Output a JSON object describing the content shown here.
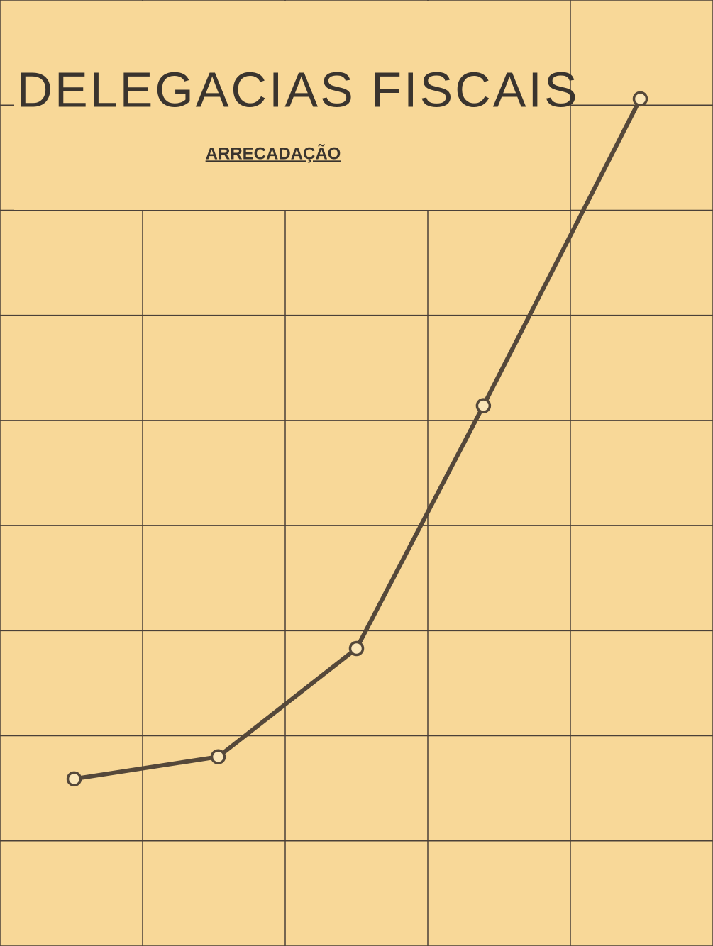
{
  "chart_data": {
    "type": "line",
    "title": "DELEGACIAS FISCAIS",
    "subtitle": "ARRECADAÇÃO",
    "x": [
      0.52,
      1.53,
      2.5,
      3.39,
      4.49
    ],
    "series": [
      {
        "color": "#55483a",
        "values": [
          1.59,
          1.8,
          2.83,
          5.14,
          8.06
        ]
      }
    ],
    "xlim": [
      0,
      5
    ],
    "ylim": [
      0,
      9
    ],
    "xticks": [
      0,
      1,
      2,
      3,
      4,
      5
    ],
    "yticks": [
      0,
      1,
      2,
      3,
      4,
      5,
      6,
      7,
      8,
      9
    ],
    "grid": true
  }
}
